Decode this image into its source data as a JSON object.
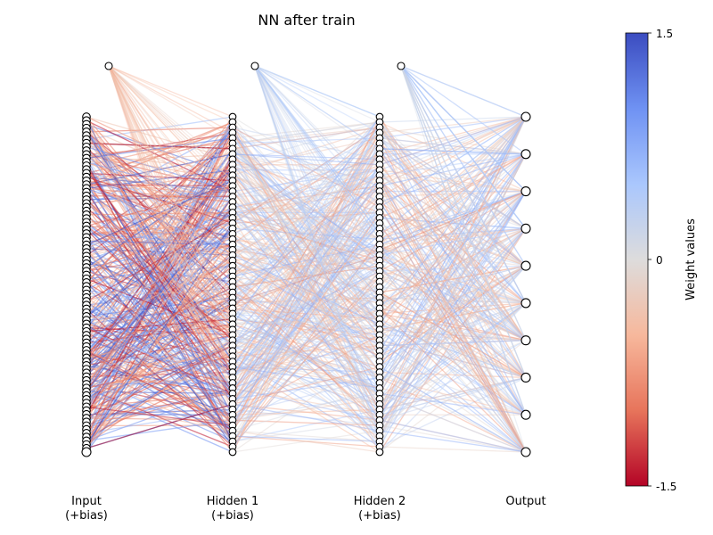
{
  "title": "NN after train",
  "layers": [
    {
      "label_line1": "Input",
      "label_line2": "(+bias)",
      "visible_nodes": 90,
      "has_bias": true
    },
    {
      "label_line1": "Hidden 1",
      "label_line2": "(+bias)",
      "visible_nodes": 64,
      "has_bias": true
    },
    {
      "label_line1": "Hidden 2",
      "label_line2": "(+bias)",
      "visible_nodes": 64,
      "has_bias": true
    },
    {
      "label_line1": "Output",
      "label_line2": "",
      "visible_nodes": 10,
      "has_bias": false
    }
  ],
  "colorbar": {
    "label": "Weight values",
    "max_label": "1.5",
    "mid_label": "0",
    "min_label": "-1.5",
    "vmin": -1.5,
    "vmax": 1.5,
    "colors": [
      "#b40426",
      "#e7745b",
      "#f7b89c",
      "#dddcdc",
      "#aac7fd",
      "#6f92f3",
      "#3b4cc0"
    ]
  }
}
